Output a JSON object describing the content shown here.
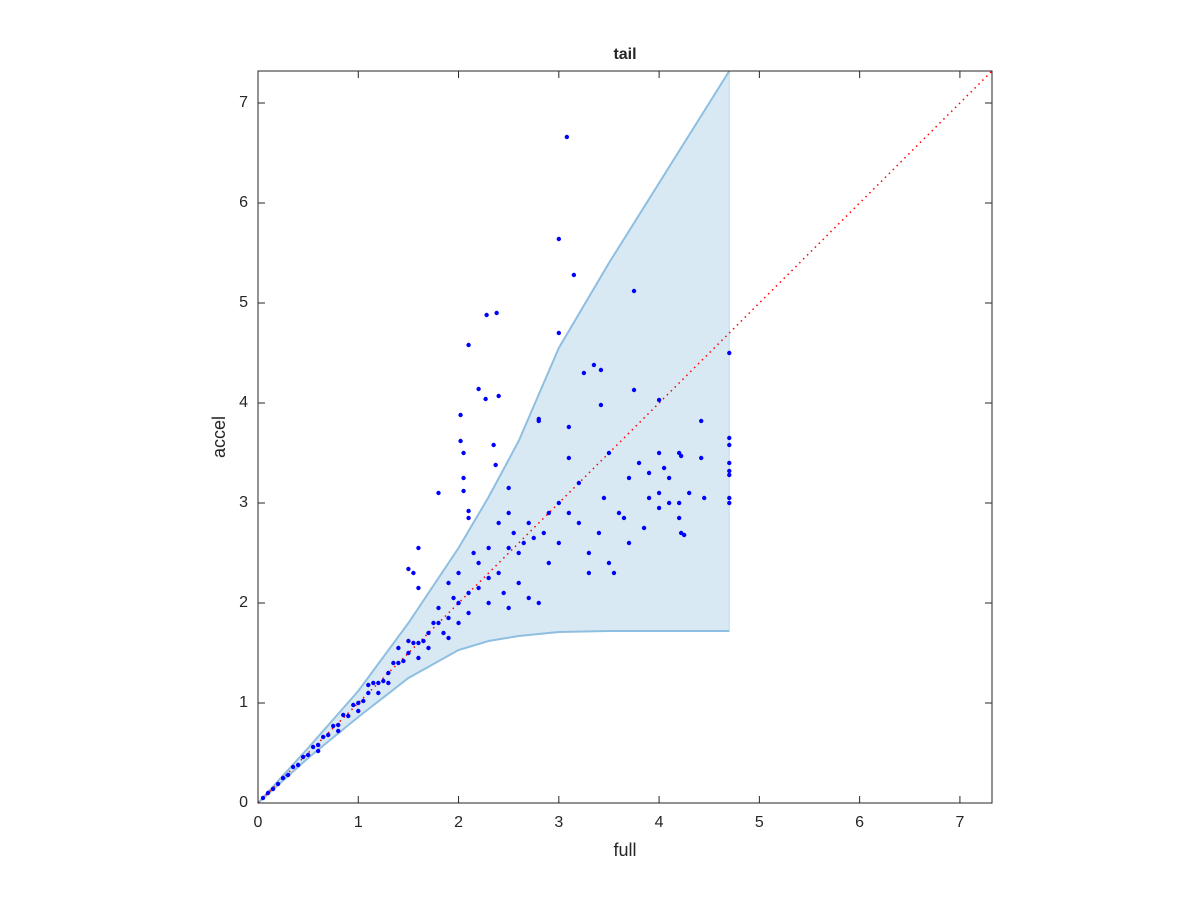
{
  "chart_data": {
    "type": "scatter",
    "title": "tail",
    "xlabel": "full",
    "ylabel": "accel",
    "xlim": [
      0,
      7.32
    ],
    "ylim": [
      0,
      7.32
    ],
    "xticks": [
      0,
      1,
      2,
      3,
      4,
      5,
      6,
      7
    ],
    "yticks": [
      0,
      1,
      2,
      3,
      4,
      5,
      6,
      7
    ],
    "color": "#0000ff",
    "x": [
      3.08,
      3.0,
      3.15,
      3.75,
      2.28,
      2.38,
      2.1,
      3.0,
      4.7,
      3.35,
      3.42,
      3.25,
      2.2,
      2.27,
      2.4,
      3.75,
      4.0,
      3.42,
      2.02,
      2.8,
      2.8,
      3.1,
      2.02,
      2.35,
      4.42,
      4.7,
      4.7,
      4.7,
      4.7,
      4.7,
      4.7,
      4.7,
      2.05,
      2.37,
      2.5,
      1.8,
      2.05,
      2.05,
      2.1,
      2.1,
      1.6,
      1.5,
      1.55,
      1.6,
      3.1,
      3.5,
      3.7,
      3.8,
      4.0,
      4.05,
      4.2,
      4.22,
      4.42,
      4.45,
      4.0,
      4.1,
      4.2,
      3.9,
      3.6,
      3.5,
      3.55,
      3.3,
      4.2,
      4.22,
      4.0,
      3.2,
      3.0,
      2.75,
      2.85,
      2.9,
      2.7,
      2.6,
      2.5,
      2.4,
      2.3,
      2.2,
      2.1,
      2.0,
      2.0,
      1.9,
      1.8,
      1.7,
      1.6,
      1.5,
      1.4,
      1.3,
      1.2,
      1.1,
      1.0,
      2.3,
      2.5,
      2.7,
      2.8,
      3.3,
      3.7,
      4.25,
      0.05,
      0.1,
      0.15,
      0.2,
      0.25,
      0.3,
      0.35,
      0.4,
      0.45,
      0.5,
      0.55,
      0.6,
      0.65,
      0.7,
      0.75,
      0.8,
      0.85,
      0.9,
      0.95,
      1.05,
      1.15,
      1.25,
      1.35,
      1.45,
      1.55,
      1.65,
      1.75,
      1.85,
      1.95,
      0.8,
      1.0,
      1.2,
      1.4,
      1.6,
      1.8,
      1.9,
      2.1,
      2.2,
      2.3,
      2.4,
      2.5,
      2.6,
      2.9,
      3.0,
      3.1,
      3.2,
      3.4,
      3.45,
      3.65,
      3.85,
      3.9,
      4.1,
      4.3,
      0.6,
      1.1,
      1.3,
      1.5,
      1.7,
      1.9,
      2.0,
      2.15,
      2.45,
      2.55,
      2.65
    ],
    "values": [
      6.66,
      5.64,
      5.28,
      5.12,
      4.88,
      4.9,
      4.58,
      4.7,
      4.5,
      4.38,
      4.33,
      4.3,
      4.14,
      4.04,
      4.07,
      4.13,
      4.03,
      3.98,
      3.88,
      3.84,
      3.82,
      3.76,
      3.62,
      3.58,
      3.82,
      3.65,
      3.58,
      3.4,
      3.32,
      3.28,
      3.05,
      3.0,
      3.5,
      3.38,
      3.15,
      3.1,
      3.25,
      3.12,
      2.92,
      2.85,
      2.55,
      2.34,
      2.3,
      2.15,
      3.45,
      3.5,
      3.25,
      3.4,
      3.5,
      3.35,
      3.5,
      3.47,
      3.45,
      3.05,
      3.1,
      3.0,
      3.0,
      3.05,
      2.9,
      2.4,
      2.3,
      2.5,
      2.85,
      2.7,
      2.95,
      2.8,
      2.6,
      2.65,
      2.7,
      2.9,
      2.8,
      2.5,
      2.55,
      2.3,
      2.25,
      2.15,
      2.1,
      2.0,
      1.8,
      1.85,
      1.8,
      1.7,
      1.6,
      1.5,
      1.4,
      1.3,
      1.2,
      1.1,
      1.0,
      2.0,
      1.95,
      2.05,
      2.0,
      2.3,
      2.6,
      2.68,
      0.05,
      0.1,
      0.14,
      0.19,
      0.25,
      0.28,
      0.36,
      0.38,
      0.46,
      0.48,
      0.56,
      0.58,
      0.66,
      0.68,
      0.77,
      0.78,
      0.88,
      0.87,
      0.98,
      1.02,
      1.2,
      1.22,
      1.4,
      1.42,
      1.6,
      1.62,
      1.8,
      1.7,
      2.05,
      0.72,
      0.92,
      1.1,
      1.55,
      1.45,
      1.95,
      2.2,
      1.9,
      2.4,
      2.55,
      2.8,
      2.9,
      2.2,
      2.4,
      3.0,
      2.9,
      3.2,
      2.7,
      3.05,
      2.85,
      2.75,
      3.3,
      3.25,
      3.1,
      0.52,
      1.18,
      1.2,
      1.62,
      1.55,
      1.65,
      2.3,
      2.5,
      2.1,
      2.7,
      2.6
    ],
    "band": {
      "color": "#8ebfe0",
      "x": [
        0,
        0.5,
        1,
        1.5,
        2,
        2.3,
        2.6,
        3,
        3.5,
        4,
        4.5,
        4.7
      ],
      "upper": [
        0,
        0.55,
        1.12,
        1.8,
        2.55,
        3.06,
        3.62,
        4.55,
        5.4,
        6.2,
        7.0,
        7.32
      ],
      "lower": [
        0,
        0.45,
        0.86,
        1.25,
        1.53,
        1.62,
        1.67,
        1.71,
        1.72,
        1.72,
        1.72,
        1.72
      ]
    },
    "reference_line": {
      "color": "#ff0000",
      "x": [
        0,
        7.32
      ],
      "y": [
        0,
        7.32
      ]
    }
  }
}
